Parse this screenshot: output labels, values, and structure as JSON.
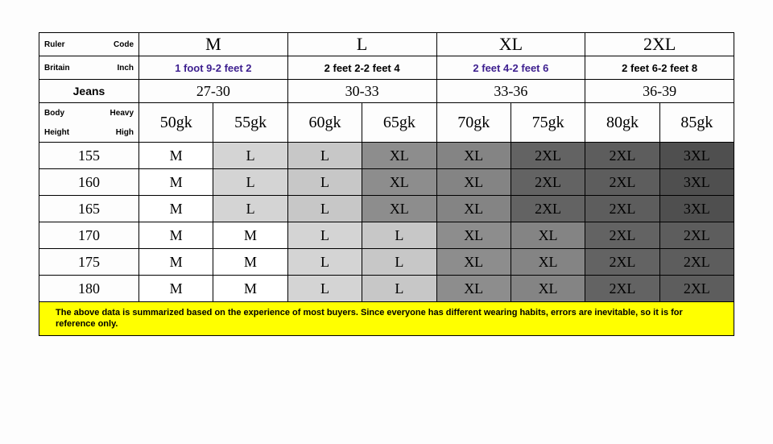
{
  "header": {
    "row1_left_a": "Ruler",
    "row1_left_b": "Code",
    "row2_left_a": "Britain",
    "row2_left_b": "Inch",
    "row3_left": "Jeans",
    "row4a_left_a": "Body",
    "row4a_left_b": "Heavy",
    "row4b_left_a": "Height",
    "row4b_left_b": "High",
    "sizes": [
      "M",
      "L",
      "XL",
      "2XL"
    ],
    "feet": [
      "1 foot 9-2 feet 2",
      "2 feet 2-2 feet 4",
      "2 feet 4-2 feet 6",
      "2 feet 6-2 feet 8"
    ],
    "feet_purple": [
      true,
      false,
      true,
      false
    ],
    "jeans": [
      "27-30",
      "30-33",
      "33-36",
      "36-39"
    ],
    "weights": [
      "50gk",
      "55gk",
      "60gk",
      "65gk",
      "70gk",
      "75gk",
      "80gk",
      "85gk"
    ]
  },
  "heights": [
    "155",
    "160",
    "165",
    "170",
    "175",
    "180"
  ],
  "grid": [
    [
      "M",
      "L",
      "L",
      "XL",
      "XL",
      "2XL",
      "2XL",
      "3XL"
    ],
    [
      "M",
      "L",
      "L",
      "XL",
      "XL",
      "2XL",
      "2XL",
      "3XL"
    ],
    [
      "M",
      "L",
      "L",
      "XL",
      "XL",
      "2XL",
      "2XL",
      "3XL"
    ],
    [
      "M",
      "M",
      "L",
      "L",
      "XL",
      "XL",
      "2XL",
      "2XL"
    ],
    [
      "M",
      "M",
      "L",
      "L",
      "XL",
      "XL",
      "2XL",
      "2XL"
    ],
    [
      "M",
      "M",
      "L",
      "L",
      "XL",
      "XL",
      "2XL",
      "2XL"
    ]
  ],
  "grid_shade": [
    [
      0,
      1,
      2,
      3,
      4,
      5,
      6,
      7
    ],
    [
      0,
      1,
      2,
      3,
      4,
      5,
      6,
      7
    ],
    [
      0,
      1,
      2,
      3,
      4,
      5,
      6,
      7
    ],
    [
      0,
      0,
      1,
      2,
      3,
      4,
      5,
      6
    ],
    [
      0,
      0,
      1,
      2,
      3,
      4,
      5,
      6
    ],
    [
      0,
      0,
      1,
      2,
      3,
      4,
      5,
      6
    ]
  ],
  "note": "The above data is summarized based on the experience of most buyers. Since everyone has different wearing habits, errors are inevitable, so it is for reference only.",
  "colors": {
    "shade0": "#ffffff",
    "shade1": "#d4d4d4",
    "shade2": "#c7c7c7",
    "shade3": "#8d8d8d",
    "shade4": "#848484",
    "shade5": "#636363",
    "shade6": "#5d5d5d",
    "shade7": "#4f4f4f",
    "note_bg": "#ffff00",
    "feet_purple": "#3d1f8f"
  }
}
